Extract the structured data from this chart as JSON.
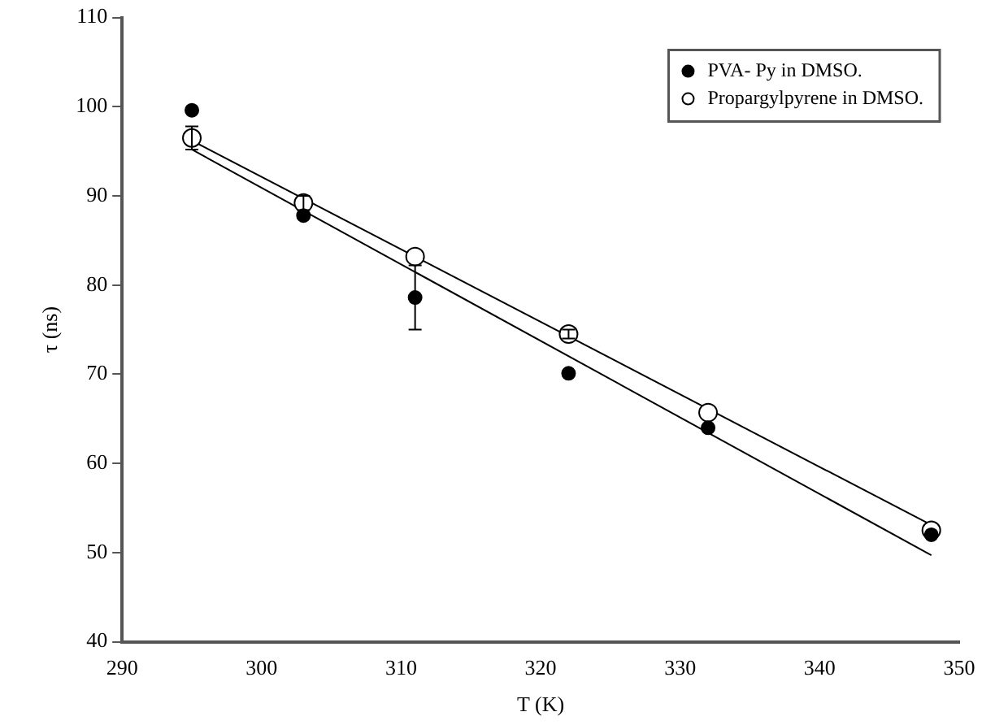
{
  "chart_data": {
    "type": "scatter",
    "xlabel": "T (K)",
    "ylabel": "τ (ns)",
    "xlim": [
      290,
      350
    ],
    "xticks": [
      290,
      300,
      310,
      320,
      330,
      340,
      350
    ],
    "ylim": [
      40,
      110
    ],
    "yticks": [
      40,
      50,
      60,
      70,
      80,
      90,
      100,
      110
    ],
    "grid": false,
    "legend": "top right",
    "series": [
      {
        "name": "PVA- Py in DMSO.",
        "color": "#000000",
        "marker": "circle",
        "x": [
          295,
          303,
          311,
          322,
          332,
          348
        ],
        "values": [
          99.6,
          87.8,
          78.6,
          70.1,
          64.0,
          52.0
        ],
        "errors": [
          null,
          null,
          3.6,
          null,
          null,
          null
        ]
      },
      {
        "name": "Propargylpyrene in DMSO.",
        "color": "#000000",
        "marker": "circle",
        "x": [
          295,
          303,
          311,
          322,
          332,
          348
        ],
        "values": [
          96.5,
          89.2,
          83.2,
          74.5,
          65.7,
          52.5
        ],
        "errors": [
          1.3,
          0.8,
          null,
          0.5,
          null,
          null
        ]
      },
      {
        "type": "line",
        "color": "#000000",
        "marker": "none",
        "x": [
          295,
          348
        ],
        "values": [
          96.2,
          53.1
        ]
      },
      {
        "type": "line",
        "color": "#000000",
        "marker": "none",
        "x": [
          295,
          348
        ],
        "values": [
          95.2,
          49.7
        ]
      }
    ]
  }
}
